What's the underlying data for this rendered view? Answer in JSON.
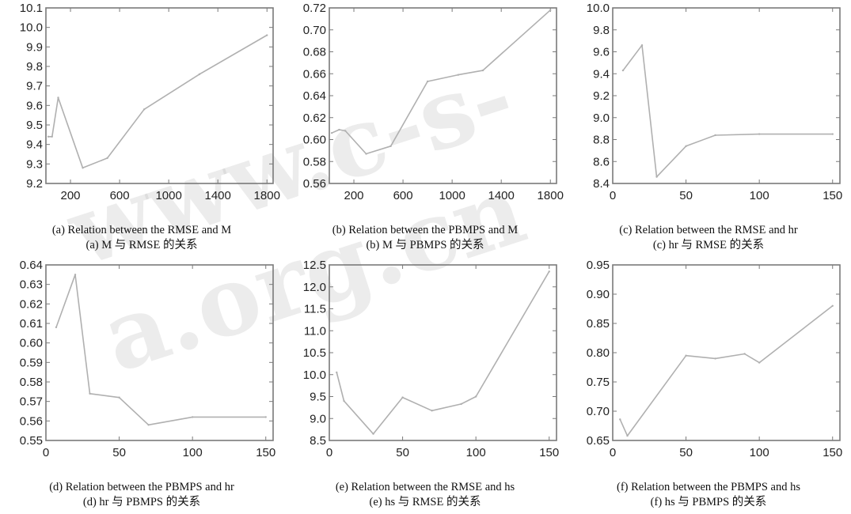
{
  "colors": {
    "line": "#b0b0b0",
    "axis": "#7a7a7a",
    "text": "#222222"
  },
  "watermark": "www.c-s-a.org.cn",
  "chart_data": [
    {
      "type": "line",
      "caption_en": "(a) Relation between the RMSE and M",
      "caption_zh": "(a) M 与 RMSE 的关系",
      "xlim": [
        0,
        1850
      ],
      "ylim": [
        9.2,
        10.1
      ],
      "xticks": [
        200,
        600,
        1000,
        1400,
        1800
      ],
      "yticks": [
        9.2,
        9.3,
        9.4,
        9.5,
        9.6,
        9.7,
        9.8,
        9.9,
        10.0,
        10.1
      ],
      "x": [
        20,
        50,
        100,
        300,
        500,
        800,
        1250,
        1800
      ],
      "y": [
        9.44,
        9.44,
        9.64,
        9.28,
        9.33,
        9.58,
        9.76,
        9.96
      ]
    },
    {
      "type": "line",
      "caption_en": "(b) Relation between the PBMPS and M",
      "caption_zh": "(b) M 与 PBMPS 的关系",
      "xlim": [
        0,
        1850
      ],
      "ylim": [
        0.56,
        0.72
      ],
      "xticks": [
        200,
        600,
        1000,
        1400,
        1800
      ],
      "yticks": [
        0.56,
        0.58,
        0.6,
        0.62,
        0.64,
        0.66,
        0.68,
        0.7,
        0.72
      ],
      "x": [
        20,
        80,
        130,
        300,
        500,
        800,
        1050,
        1250,
        1800
      ],
      "y": [
        0.606,
        0.609,
        0.608,
        0.587,
        0.594,
        0.653,
        0.659,
        0.663,
        0.718
      ]
    },
    {
      "type": "line",
      "caption_en": "(c) Relation between the RMSE and hr",
      "caption_zh": "(c) hr 与 RMSE 的关系",
      "xlim": [
        0,
        155
      ],
      "ylim": [
        8.4,
        10.0
      ],
      "xticks": [
        0,
        50,
        100,
        150
      ],
      "yticks": [
        8.4,
        8.6,
        8.8,
        9.0,
        9.2,
        9.4,
        9.6,
        9.8,
        10.0
      ],
      "x": [
        7,
        20,
        30,
        50,
        70,
        100,
        150
      ],
      "y": [
        9.43,
        9.66,
        8.46,
        8.74,
        8.84,
        8.85,
        8.85
      ]
    },
    {
      "type": "line",
      "caption_en": "(d) Relation between the PBMPS and hr",
      "caption_zh": "(d) hr 与 PBMPS 的关系",
      "xlim": [
        0,
        155
      ],
      "ylim": [
        0.55,
        0.64
      ],
      "xticks": [
        0,
        50,
        100,
        150
      ],
      "yticks": [
        0.55,
        0.56,
        0.57,
        0.58,
        0.59,
        0.6,
        0.61,
        0.62,
        0.63,
        0.64
      ],
      "x": [
        7,
        20,
        30,
        50,
        70,
        100,
        150
      ],
      "y": [
        0.608,
        0.635,
        0.574,
        0.572,
        0.558,
        0.562,
        0.562
      ]
    },
    {
      "type": "line",
      "caption_en": "(e) Relation between the RMSE and hs",
      "caption_zh": "(e) hs 与 RMSE 的关系",
      "xlim": [
        0,
        155
      ],
      "ylim": [
        8.5,
        12.5
      ],
      "xticks": [
        0,
        50,
        100,
        150
      ],
      "yticks": [
        8.5,
        9.0,
        9.5,
        10.0,
        10.5,
        11.0,
        11.5,
        12.0,
        12.5
      ],
      "x": [
        5,
        10,
        30,
        50,
        70,
        90,
        100,
        150
      ],
      "y": [
        10.05,
        9.4,
        8.65,
        9.48,
        9.18,
        9.33,
        9.5,
        12.35
      ]
    },
    {
      "type": "line",
      "caption_en": "(f) Relation between the PBMPS and hs",
      "caption_zh": "(f) hs 与 PBMPS 的关系",
      "xlim": [
        0,
        155
      ],
      "ylim": [
        0.65,
        0.95
      ],
      "xticks": [
        0,
        50,
        100,
        150
      ],
      "yticks": [
        0.65,
        0.7,
        0.75,
        0.8,
        0.85,
        0.9,
        0.95
      ],
      "x": [
        5,
        10,
        50,
        70,
        90,
        100,
        150
      ],
      "y": [
        0.686,
        0.658,
        0.795,
        0.79,
        0.798,
        0.783,
        0.88
      ]
    }
  ]
}
